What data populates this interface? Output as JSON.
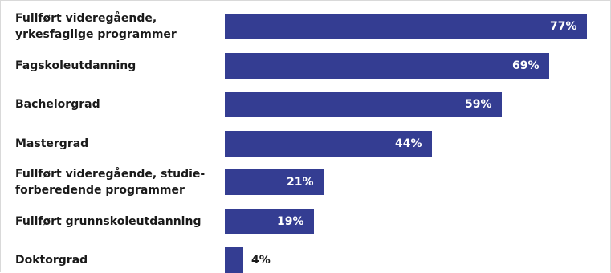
{
  "chart_data": {
    "type": "bar",
    "orientation": "horizontal",
    "categories": [
      "Fullført videregående,\nyrkesfaglige programmer",
      "Fagskoleutdanning",
      "Bachelorgrad",
      "Mastergrad",
      "Fullført videregående, studie-\nforberedende programmer",
      "Fullført grunnskoleutdanning",
      "Doktorgrad"
    ],
    "values": [
      77,
      69,
      59,
      44,
      21,
      19,
      4
    ],
    "value_labels": [
      "77%",
      "69%",
      "59%",
      "44%",
      "21%",
      "19%",
      "4%"
    ],
    "xlim": [
      0,
      82
    ],
    "grid": false,
    "bar_color": "#343d92",
    "value_label_inside_color": "#ffffff",
    "value_label_outside_color": "#1a1a1a"
  }
}
